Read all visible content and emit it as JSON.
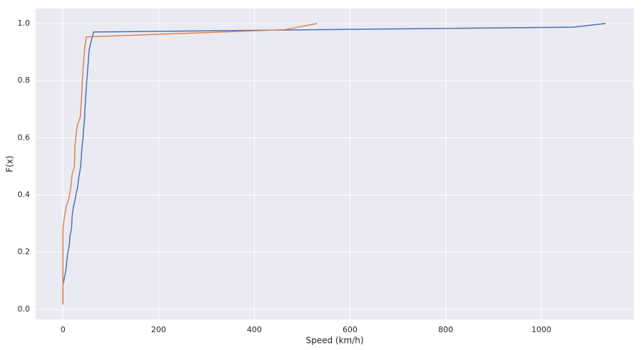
{
  "chart_data": {
    "type": "line",
    "x_label": "Speed (km/h)",
    "y_label": "F(x)",
    "xlim": [
      -57,
      1193
    ],
    "ylim": [
      -0.035,
      1.052
    ],
    "xticks": [
      0,
      200,
      400,
      600,
      800,
      1000
    ],
    "yticks": [
      {
        "value": 0,
        "label": "0.0"
      },
      0.2,
      0.4,
      0.6,
      0.8,
      {
        "value": 1,
        "label": "1.0"
      }
    ],
    "grid": true,
    "series": [
      {
        "color": "#4c72b0",
        "x": [
          0,
          0,
          3,
          6,
          7.5,
          10,
          13,
          15,
          18,
          19,
          22,
          25,
          28,
          30,
          33,
          34,
          37,
          39,
          40,
          42,
          43,
          45,
          46,
          49,
          52,
          55,
          60,
          64,
          463,
          1067,
          1134
        ],
        "values": [
          0.017,
          0.085,
          0.11,
          0.135,
          0.16,
          0.197,
          0.222,
          0.26,
          0.284,
          0.322,
          0.36,
          0.38,
          0.41,
          0.42,
          0.46,
          0.47,
          0.5,
          0.55,
          0.57,
          0.6,
          0.63,
          0.66,
          0.7,
          0.78,
          0.845,
          0.91,
          0.945,
          0.97,
          0.977,
          0.987,
          1.0
        ]
      },
      {
        "color": "#dd8452",
        "x": [
          0,
          0,
          3,
          7,
          12,
          16,
          19,
          24,
          25,
          28,
          31,
          36,
          39,
          42,
          46,
          49,
          52,
          463,
          531
        ],
        "values": [
          0.017,
          0.284,
          0.322,
          0.36,
          0.384,
          0.42,
          0.47,
          0.5,
          0.57,
          0.62,
          0.65,
          0.67,
          0.745,
          0.845,
          0.92,
          0.953,
          0.953,
          0.978,
          1.0
        ]
      }
    ]
  }
}
